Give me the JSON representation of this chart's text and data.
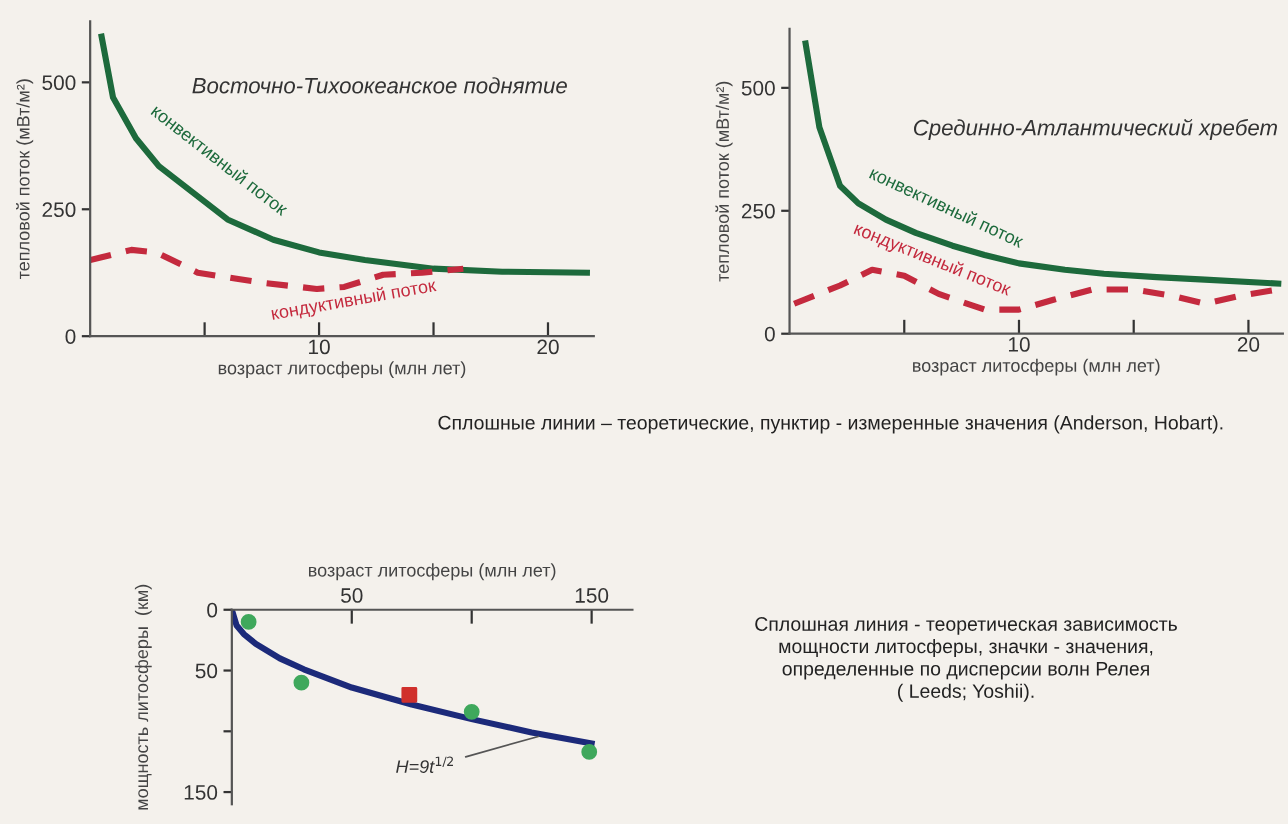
{
  "chart_data": [
    {
      "type": "line",
      "title": "Восточно-Тихоокеанское поднятие",
      "xlabel": "возраст литосферы (млн лет)",
      "ylabel": "тепловой поток (мВт/м²)",
      "xlim": [
        0,
        22
      ],
      "ylim": [
        0,
        620
      ],
      "xticks": [
        {
          "value": 5,
          "label": null
        },
        10,
        {
          "value": 15,
          "label": null
        },
        20
      ],
      "yticks": [
        0,
        250,
        500
      ],
      "grid": false,
      "legend": false,
      "series": [
        {
          "name": "конвективный поток",
          "color": "#1d6a3c",
          "line_style": "solid",
          "x": [
            0.5,
            1,
            2,
            3,
            4,
            5,
            6,
            8,
            10,
            12,
            15,
            18,
            21.7
          ],
          "values": [
            590,
            470,
            390,
            335,
            300,
            265,
            230,
            190,
            165,
            150,
            133,
            127,
            125
          ]
        },
        {
          "name": "кондуктивный поток",
          "color": "#c42a3e",
          "line_style": "dashed",
          "x": [
            0,
            1.8,
            2.9,
            4.7,
            6.4,
            7.6,
            9.9,
            11.1,
            12.8,
            14.5,
            16.3
          ],
          "values": [
            150,
            170,
            165,
            125,
            113,
            105,
            93,
            97,
            121,
            125,
            133
          ]
        }
      ]
    },
    {
      "type": "line",
      "title": "Срединно-Атлантический хребет",
      "xlabel": "возраст литосферы (млн лет)",
      "ylabel": "тепловой поток (мВт/м²)",
      "xlim": [
        0,
        21.5
      ],
      "ylim": [
        0,
        620
      ],
      "xticks": [
        {
          "value": 5,
          "label": null
        },
        10,
        {
          "value": 15,
          "label": null
        },
        20
      ],
      "yticks": [
        0,
        250,
        500
      ],
      "grid": false,
      "legend": false,
      "annotations": [
        "Сплошные линии – теоретические, пунктир - измеренные значения (Anderson, Hobart)."
      ],
      "series": [
        {
          "name": "конвективный поток",
          "color": "#1d6a3c",
          "line_style": "solid",
          "x": [
            0.7,
            1.3,
            2.2,
            3,
            4.2,
            5.5,
            7.1,
            8.5,
            10,
            12,
            13.7,
            16,
            18.1,
            21.3
          ],
          "values": [
            590,
            420,
            301,
            265,
            232,
            205,
            179,
            160,
            143,
            130,
            122,
            115,
            110,
            102
          ]
        },
        {
          "name": "кондуктивный поток",
          "color": "#c42a3e",
          "line_style": "dashed",
          "x": [
            0.2,
            2.2,
            3.6,
            5,
            6.5,
            8.5,
            10,
            11.5,
            13.2,
            15,
            16.7,
            18.1,
            19.6,
            21.3
          ],
          "values": [
            61,
            98,
            130,
            118,
            81,
            49,
            49,
            69,
            90,
            90,
            77,
            61,
            77,
            90
          ]
        }
      ]
    },
    {
      "type": "line",
      "xlabel": "возраст литосферы (млн лет)",
      "ylabel": "мощность литосферы  (км)",
      "xlim": [
        0,
        167
      ],
      "ylim": [
        160,
        0
      ],
      "xticks": [
        50,
        {
          "value": 100,
          "label": null
        },
        150
      ],
      "yticks": [
        0,
        50,
        {
          "value": 100,
          "label": null
        },
        150
      ],
      "grid": false,
      "legend": false,
      "annotations": [
        "Сплошная линия - теоретическая зависимость\nмощности литосферы, значки - значения,\nопределенные по дисперсии волн Релея\n( Leeds; Yoshii).",
        {
          "text": "H=9t$^{1/2}$",
          "x": 130,
          "y": 103
        }
      ],
      "series": [
        {
          "type": "line",
          "color": "#1c2a7a",
          "line_style": "solid",
          "x": [
            0,
            2,
            5,
            10,
            20,
            30,
            50,
            75,
            100,
            125,
            150
          ],
          "values": [
            0,
            13,
            20,
            28,
            40,
            49,
            64,
            78,
            90,
            101,
            110
          ]
        },
        {
          "type": "scatter",
          "color": "#3fa85c",
          "marker": "circle",
          "x": [
            7,
            29,
            100,
            149
          ],
          "values": [
            10,
            60,
            84,
            117
          ]
        },
        {
          "type": "scatter",
          "color": "#d0302c",
          "marker": "square",
          "x": [
            74
          ],
          "values": [
            70
          ]
        }
      ]
    }
  ]
}
